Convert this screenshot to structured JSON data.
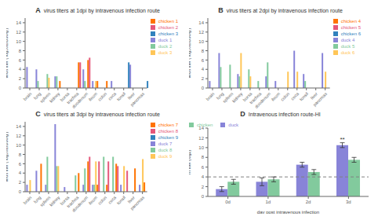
{
  "chart_data": [
    {
      "type": "bar",
      "title": "virus titers at 1dpi by intravenous infection route",
      "ylabel": "virus titer ( log10EID50/g )",
      "annotations": [
        {
          "text": "A"
        }
      ],
      "categories": [
        "brain",
        "lung",
        "spleen",
        "kidney",
        "bursa",
        "trachea",
        "duodenum",
        "ileum",
        "colon",
        "ceca",
        "tonsil",
        "liver",
        "pancreas"
      ],
      "series": [
        {
          "name": "duck 1",
          "color": "#8884d8",
          "values": [
            4.5,
            4.0,
            0.0,
            2.5,
            0.0,
            0.0,
            4.0,
            1.5,
            0.0,
            1.5,
            0.0,
            5.0,
            0.0
          ]
        },
        {
          "name": "duck 2",
          "color": "#82ca9d",
          "values": [
            0.0,
            1.5,
            3.0,
            2.5,
            0.0,
            0.0,
            1.5,
            0.0,
            0.0,
            0.0,
            0.0,
            0.0,
            0.0
          ]
        },
        {
          "name": "duck 3",
          "color": "#ffc658",
          "values": [
            0.0,
            0.0,
            2.2,
            0.0,
            0.0,
            0.0,
            0.0,
            1.5,
            0.0,
            0.0,
            0.0,
            0.0,
            0.0
          ]
        },
        {
          "name": "chicken 1",
          "color": "#ff7300",
          "values": [
            0.0,
            0.0,
            0.0,
            1.5,
            0.0,
            5.5,
            6.0,
            1.5,
            1.5,
            0.0,
            0.0,
            0.0,
            0.0
          ]
        },
        {
          "name": "chicken 2",
          "color": "#e5577a",
          "values": [
            0.0,
            0.0,
            0.0,
            0.0,
            0.0,
            5.5,
            6.5,
            0.0,
            0.0,
            0.0,
            0.0,
            0.0,
            0.0
          ]
        },
        {
          "name": "chicken 3",
          "color": "#3182bd",
          "values": [
            0.0,
            0.0,
            0.0,
            0.0,
            0.0,
            0.0,
            0.0,
            0.0,
            0.0,
            0.0,
            5.5,
            0.0,
            1.5
          ]
        }
      ],
      "ylim": [
        0,
        15
      ],
      "yticks": [
        0,
        2,
        4,
        6,
        8,
        10,
        12,
        14
      ],
      "legend": "upper right",
      "grid": false
    },
    {
      "type": "bar",
      "title": "virus titers at 2dpi by intravenous infection route",
      "ylabel": "virus titer ( log10EID50/g )",
      "annotations": [
        {
          "text": "B"
        }
      ],
      "categories": [
        "brain",
        "lung",
        "spleen",
        "kidney",
        "bursa",
        "trachea",
        "duodenum",
        "ileum",
        "colon",
        "ceca",
        "tonsil",
        "liver",
        "pancreas"
      ],
      "series": [
        {
          "name": "duck 4",
          "color": "#8884d8",
          "values": [
            1.5,
            7.5,
            0.0,
            3.0,
            0.0,
            0.0,
            2.5,
            1.5,
            0.0,
            8.0,
            3.0,
            0.0,
            7.5
          ]
        },
        {
          "name": "duck 5",
          "color": "#82ca9d",
          "values": [
            0.0,
            4.5,
            5.0,
            2.5,
            4.0,
            1.5,
            5.5,
            0.0,
            0.0,
            0.0,
            1.5,
            0.0,
            0.0
          ]
        },
        {
          "name": "duck 6",
          "color": "#ffc658",
          "values": [
            0.0,
            0.0,
            0.0,
            7.5,
            2.5,
            0.0,
            0.0,
            0.0,
            3.5,
            3.5,
            0.0,
            0.0,
            3.5
          ]
        },
        {
          "name": "chicken 4",
          "color": "#ff7300",
          "values": [
            0.0,
            0.0,
            0.0,
            0.0,
            0.0,
            0.0,
            0.0,
            0.0,
            0.0,
            0.0,
            0.0,
            0.0,
            0.0
          ]
        },
        {
          "name": "chicken 5",
          "color": "#e5577a",
          "values": [
            0.0,
            0.0,
            0.0,
            0.0,
            0.0,
            0.0,
            0.0,
            0.0,
            0.0,
            0.0,
            0.0,
            0.0,
            0.0
          ]
        },
        {
          "name": "chicken 6",
          "color": "#3182bd",
          "values": [
            0.0,
            0.0,
            0.0,
            0.0,
            0.0,
            0.0,
            0.0,
            0.0,
            0.0,
            0.0,
            0.0,
            0.0,
            0.0
          ]
        }
      ],
      "ylim": [
        0,
        15
      ],
      "yticks": [
        0,
        2,
        4,
        6,
        8,
        10,
        12,
        14
      ],
      "legend": "upper right",
      "grid": false
    },
    {
      "type": "bar",
      "title": "virus titers at 3dpi by intravenous infection route",
      "ylabel": "virus titer ( log10EID50/g )",
      "annotations": [
        {
          "text": "C"
        }
      ],
      "categories": [
        "brain",
        "lung",
        "spleen",
        "kidney",
        "bursa",
        "trachea",
        "duodenum",
        "ileum",
        "colon",
        "ceca",
        "tonsil",
        "liver",
        "pancreas"
      ],
      "series": [
        {
          "name": "duck 7",
          "color": "#8884d8",
          "values": [
            1.5,
            4.5,
            1.5,
            14.5,
            1.0,
            0.0,
            1.5,
            1.5,
            0.0,
            0.0,
            1.5,
            0.0,
            1.5
          ]
        },
        {
          "name": "duck 8",
          "color": "#82ca9d",
          "values": [
            0.0,
            0.0,
            7.5,
            5.5,
            0.0,
            3.5,
            5.0,
            1.5,
            7.5,
            7.5,
            0.0,
            0.0,
            0.0
          ]
        },
        {
          "name": "duck 9",
          "color": "#ffc658",
          "values": [
            2.5,
            0.0,
            0.0,
            5.5,
            0.0,
            0.0,
            0.0,
            6.5,
            0.0,
            0.0,
            5.5,
            0.0,
            7.0
          ]
        },
        {
          "name": "chicken 7",
          "color": "#ff7300",
          "values": [
            0.0,
            6.0,
            0.0,
            0.0,
            0.0,
            4.0,
            6.5,
            1.5,
            1.5,
            6.0,
            0.0,
            5.0,
            2.0
          ]
        },
        {
          "name": "chicken 8",
          "color": "#e5577a",
          "values": [
            0.0,
            0.0,
            0.0,
            0.0,
            0.0,
            0.0,
            7.5,
            6.5,
            6.5,
            5.5,
            4.5,
            0.0,
            0.0
          ]
        },
        {
          "name": "chicken 9",
          "color": "#3182bd",
          "values": [
            0.0,
            0.0,
            0.0,
            0.0,
            0.0,
            0.0,
            0.0,
            0.0,
            0.0,
            0.0,
            0.0,
            0.0,
            0.0
          ]
        }
      ],
      "ylim": [
        0,
        15
      ],
      "yticks": [
        0,
        2,
        4,
        6,
        8,
        10,
        12,
        14
      ],
      "legend": "upper right",
      "grid": false
    },
    {
      "type": "bar",
      "title": "Intravenous infection route-HI",
      "ylabel": "HI titer (log2)",
      "xlabel": "day post intravenous infection",
      "annotations": [
        {
          "text": "D"
        },
        {
          "text": "**",
          "x": "3d",
          "series": "duck"
        }
      ],
      "categories": [
        "0d",
        "1d",
        "2d",
        "3d"
      ],
      "series": [
        {
          "name": "duck",
          "color": "#8884d8",
          "values": [
            1.5,
            3.0,
            6.5,
            10.5
          ],
          "errors": [
            0.5,
            0.8,
            0.5,
            0.5
          ]
        },
        {
          "name": "chicken",
          "color": "#82ca9d",
          "values": [
            3.0,
            3.5,
            5.0,
            7.5
          ],
          "errors": [
            0.5,
            0.5,
            0.5,
            0.5
          ]
        }
      ],
      "reference_lines": [
        {
          "y": 4,
          "line_style": "dashed",
          "color": "gray"
        }
      ],
      "ylim": [
        0,
        14
      ],
      "yticks": [
        0,
        2,
        4,
        6,
        8,
        10,
        12,
        14
      ],
      "legend": "upper left",
      "grid": false
    }
  ]
}
